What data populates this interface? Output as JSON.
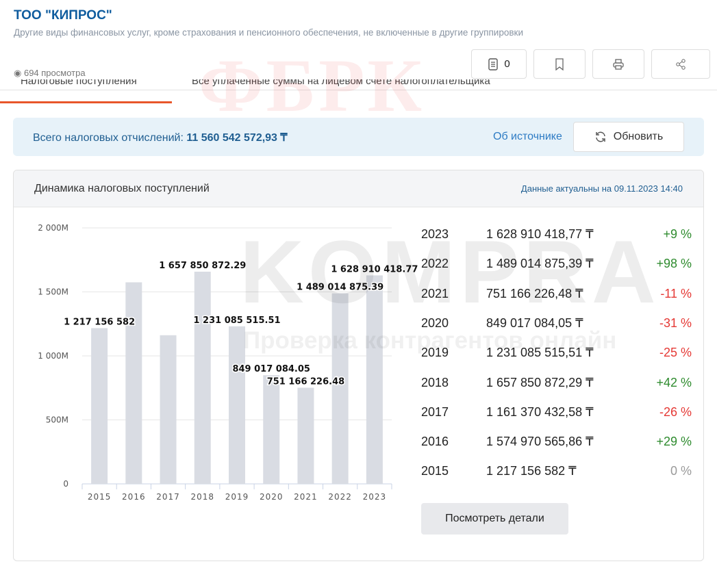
{
  "company": {
    "title": "ТОО \"КИПРОС\"",
    "activity": "Другие виды финансовых услуг, кроме страхования и пенсионного обеспечения, не включенные в другие группировки",
    "views": "694 просмотра"
  },
  "toolbar": {
    "notes_count": "0",
    "icons": [
      "notes-icon",
      "bookmark-icon",
      "print-icon",
      "share-icon"
    ]
  },
  "tabs": [
    {
      "label": "Налоговые поступления",
      "active": true
    },
    {
      "label": "Все уплаченные суммы на лицевом счете налогоплательщика",
      "active": false
    }
  ],
  "summary": {
    "label": "Всего налоговых отчислений:",
    "total": "11 560 542 572,93 ₸",
    "source_link": "Об источнике",
    "refresh_label": "Обновить"
  },
  "card": {
    "title": "Динамика налоговых поступлений",
    "actual": "Данные актуальны на 09.11.2023 14:40",
    "details_button": "Посмотреть детали"
  },
  "watermarks": {
    "top": "ФБРК",
    "logo": "KOMPRA",
    "tagline": "Проверка контрагентов онлайн"
  },
  "colors": {
    "bar": "#d9dce3",
    "positive": "#2e8b2e",
    "negative": "#e53935",
    "neutral": "#999999",
    "accent": "#e8562a"
  },
  "chart_data": {
    "type": "bar",
    "categories": [
      "2015",
      "2016",
      "2017",
      "2018",
      "2019",
      "2020",
      "2021",
      "2022",
      "2023"
    ],
    "values": [
      1217156582,
      1574970565.86,
      1161370432.58,
      1657850872.29,
      1231085515.51,
      849017084.05,
      751166226.48,
      1489014875.39,
      1628910418.77
    ],
    "data_labels": [
      "1 217 156 582",
      "",
      "",
      "1 657 850 872.29",
      "1 231 085 515.51",
      "849 017 084.05",
      "751 166 226.48",
      "1 489 014 875.39",
      "1 628 910 418.77"
    ],
    "yticks": [
      "0",
      "500M",
      "1 000M",
      "1 500M",
      "2 000M"
    ],
    "ylim": [
      0,
      2000000000
    ],
    "grid": true
  },
  "table": [
    {
      "year": "2023",
      "amount": "1 628 910 418,77 ₸",
      "change": "+9 %",
      "trend": "positive"
    },
    {
      "year": "2022",
      "amount": "1 489 014 875,39 ₸",
      "change": "+98 %",
      "trend": "positive"
    },
    {
      "year": "2021",
      "amount": "751 166 226,48 ₸",
      "change": "-11 %",
      "trend": "negative"
    },
    {
      "year": "2020",
      "amount": "849 017 084,05 ₸",
      "change": "-31 %",
      "trend": "negative"
    },
    {
      "year": "2019",
      "amount": "1 231 085 515,51 ₸",
      "change": "-25 %",
      "trend": "negative"
    },
    {
      "year": "2018",
      "amount": "1 657 850 872,29 ₸",
      "change": "+42 %",
      "trend": "positive"
    },
    {
      "year": "2017",
      "amount": "1 161 370 432,58 ₸",
      "change": "-26 %",
      "trend": "negative"
    },
    {
      "year": "2016",
      "amount": "1 574 970 565,86 ₸",
      "change": "+29 %",
      "trend": "positive"
    },
    {
      "year": "2015",
      "amount": "1 217 156 582 ₸",
      "change": "0 %",
      "trend": "neutral"
    }
  ]
}
